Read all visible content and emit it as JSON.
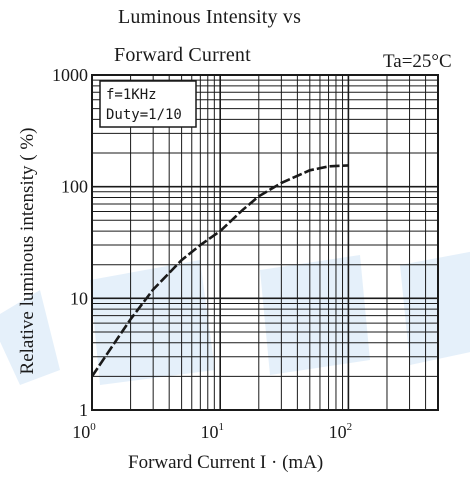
{
  "chart_data": {
    "type": "line",
    "title_line1": "Luminous Intensity vs",
    "title_line2": "Forward Current",
    "condition": "Ta=25°C",
    "xlabel": "Forward Current   I · (mA)",
    "ylabel": "Relative luminous intensity ( %)",
    "x_scale": "log",
    "y_scale": "log",
    "xlim": [
      1,
      500
    ],
    "ylim": [
      1,
      1000
    ],
    "x_ticks": [
      {
        "base": "10",
        "exp": "0",
        "value": 1
      },
      {
        "base": "10",
        "exp": "1",
        "value": 10
      },
      {
        "base": "10",
        "exp": "2",
        "value": 100
      }
    ],
    "y_ticks": [
      {
        "label": "1",
        "value": 1
      },
      {
        "label": "10",
        "value": 10
      },
      {
        "label": "100",
        "value": 100
      },
      {
        "label": "1000",
        "value": 1000
      }
    ],
    "grid": true,
    "annotation": [
      "f=1KHz",
      "Duty=1/10"
    ],
    "series": [
      {
        "x": [
          1,
          1.5,
          2,
          3,
          5,
          7,
          10,
          15,
          20,
          30,
          50,
          70,
          100
        ],
        "y": [
          2,
          4,
          6.5,
          12,
          22,
          30,
          40,
          62,
          82,
          108,
          140,
          152,
          155
        ]
      }
    ]
  }
}
